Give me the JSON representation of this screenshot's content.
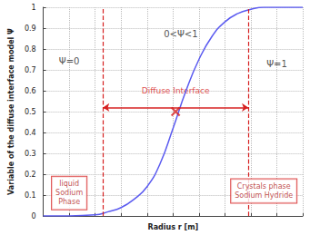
{
  "chart_data": {
    "type": "line",
    "x_label": "Radius r [m]",
    "y_label": "Variable of the diffuse interface model Ψ",
    "x": [
      0,
      1,
      2,
      2.5,
      3,
      3.5,
      4,
      4.5,
      5,
      5.5,
      6,
      6.5,
      7,
      7.5,
      8,
      8.5,
      9,
      10
    ],
    "values": [
      0,
      0,
      0.005,
      0.02,
      0.04,
      0.08,
      0.14,
      0.25,
      0.42,
      0.6,
      0.75,
      0.86,
      0.93,
      0.97,
      0.99,
      1,
      1,
      1
    ],
    "color": "#5b5bf0",
    "xlim": [
      0,
      10
    ],
    "xticks": [
      0,
      1,
      2,
      3,
      4,
      5,
      6,
      7,
      8,
      9,
      10
    ],
    "ylim": [
      0,
      1
    ],
    "yticks": [
      0,
      0.1,
      0.2,
      0.3,
      0.4,
      0.5,
      0.6,
      0.7,
      0.8,
      0.9,
      1
    ],
    "grid": true,
    "tick_labels": "y",
    "boundaries": [
      2.3,
      7.9
    ],
    "interface_arrow": {
      "text": "Diffuse Interface",
      "from": 2.3,
      "to": 7.9,
      "y": 0.52,
      "label_x": 5.1,
      "label_y": 0.6
    },
    "midpoint": {
      "x": 5.1,
      "y": 0.5
    },
    "annotations": [
      {
        "text": "Ψ=0",
        "x": 1.0,
        "y": 0.74
      },
      {
        "text": "0<Ψ<1",
        "x": 5.3,
        "y": 0.87
      },
      {
        "text": "Ψ=1",
        "x": 9.0,
        "y": 0.73
      }
    ],
    "boxes": [
      {
        "text": "liquid\nSodium\nPhase",
        "x": 1.0,
        "y": 0.11
      },
      {
        "text": "Crystals phase\nSodium Hydride",
        "x": 8.5,
        "y": 0.12
      }
    ]
  }
}
